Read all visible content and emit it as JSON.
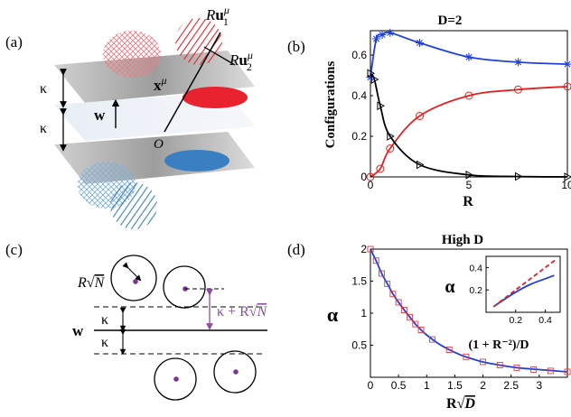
{
  "panel_labels": {
    "a": "(a)",
    "b": "(b)",
    "c": "(c)",
    "d": "(d)"
  },
  "panel_a": {
    "kappa_top": "κ",
    "kappa_bottom": "κ",
    "R": "R",
    "u": "u",
    "sub1": "1",
    "sub2": "2",
    "mu": "μ",
    "x": "x",
    "w": "w",
    "origin": "O",
    "colors": {
      "red": "#e8222e",
      "blue": "#3a7fc1",
      "plane": "#9a9a9a"
    }
  },
  "panel_b": {
    "title": "D=2",
    "ylabel": "Configurations",
    "xlabel": "R",
    "yticks": [
      "0",
      "0.2",
      "0.4",
      "0.6"
    ],
    "xticks": [
      "0",
      "5",
      "10"
    ]
  },
  "panel_c": {
    "r_sqrt_n": "R√N",
    "r_letter": "R",
    "n_letter": "N",
    "kappa_top": "κ",
    "kappa_bottom": "κ",
    "w": "w",
    "bracket_kappa": "κ + R",
    "bracket_n": "N",
    "colors": {
      "dot": "#7a3591",
      "bracket": "#8a4fa0"
    }
  },
  "panel_d": {
    "title": "High D",
    "ylabel": "α",
    "xlabel_r": "R",
    "xlabel_d": "D",
    "yticks": [
      "0.5",
      "1",
      "1.5",
      "2"
    ],
    "xticks": [
      "0",
      "0.5",
      "1",
      "1.5",
      "2",
      "2.5",
      "3"
    ],
    "inset": {
      "ylabel": "α",
      "xlabel": "(1 + R⁻²)/D",
      "yticks": [
        "0.2",
        "0.4"
      ],
      "xticks": [
        "0.2",
        "0.4"
      ]
    }
  },
  "chart_data": [
    {
      "type": "line",
      "title": "D=2",
      "xlabel": "R",
      "ylabel": "Configurations",
      "xlim": [
        0,
        10
      ],
      "ylim": [
        0,
        0.72
      ],
      "series": [
        {
          "color": "#1f3fe0",
          "marker": "asterisk",
          "x": [
            0,
            0.3,
            0.6,
            1,
            2.5,
            5,
            7.5,
            10
          ],
          "y": [
            0.49,
            0.68,
            0.7,
            0.71,
            0.66,
            0.59,
            0.565,
            0.555
          ]
        },
        {
          "color": "#e02020",
          "marker": "circle",
          "x": [
            0,
            0.5,
            1,
            2.5,
            5,
            7.5,
            10
          ],
          "y": [
            0.0,
            0.04,
            0.14,
            0.3,
            0.4,
            0.43,
            0.445
          ]
        },
        {
          "color": "#000000",
          "marker": "triangle",
          "x": [
            0,
            0.2,
            0.5,
            1,
            2.5,
            5,
            7.5,
            10
          ],
          "y": [
            0.51,
            0.48,
            0.35,
            0.2,
            0.06,
            0.01,
            0.002,
            0.0
          ]
        }
      ]
    },
    {
      "type": "line",
      "title": "High D",
      "xlabel": "R√D",
      "ylabel": "α",
      "xlim": [
        0,
        3.5
      ],
      "ylim": [
        0,
        2
      ],
      "series": [
        {
          "color": "#1f3fe0",
          "marker": "none",
          "x": [
            0,
            0.1,
            0.2,
            0.3,
            0.4,
            0.5,
            0.6,
            0.7,
            0.8,
            0.9,
            1.0,
            1.2,
            1.4,
            1.6,
            1.8,
            2.0,
            2.3,
            2.6,
            3.0,
            3.5
          ],
          "y": [
            2.0,
            1.82,
            1.62,
            1.46,
            1.3,
            1.17,
            1.05,
            0.94,
            0.83,
            0.74,
            0.66,
            0.53,
            0.43,
            0.35,
            0.29,
            0.24,
            0.19,
            0.15,
            0.12,
            0.085
          ]
        },
        {
          "color": "#e03a3a",
          "marker": "square",
          "x": [
            0,
            0.1,
            0.2,
            0.3,
            0.4,
            0.5,
            0.6,
            0.7,
            0.8,
            0.9,
            1.1,
            1.4,
            1.7,
            2.0,
            2.3,
            2.6,
            2.9,
            3.2,
            3.5
          ],
          "y": [
            2.0,
            1.82,
            1.62,
            1.46,
            1.3,
            1.17,
            1.05,
            0.94,
            0.83,
            0.74,
            0.59,
            0.43,
            0.32,
            0.24,
            0.19,
            0.15,
            0.12,
            0.1,
            0.085
          ]
        }
      ]
    },
    {
      "type": "line",
      "title": "",
      "xlabel": "(1 + R⁻²)/D",
      "ylabel": "α",
      "xlim": [
        0,
        0.5
      ],
      "ylim": [
        0,
        0.5
      ],
      "series": [
        {
          "color": "#1f3fe0",
          "marker": "none",
          "x": [
            0.05,
            0.1,
            0.2,
            0.3,
            0.4,
            0.46
          ],
          "y": [
            0.05,
            0.095,
            0.18,
            0.25,
            0.3,
            0.33
          ]
        },
        {
          "color": "#e02020",
          "marker": "none",
          "dash": true,
          "x": [
            0.05,
            0.47
          ],
          "y": [
            0.05,
            0.47
          ]
        }
      ]
    }
  ]
}
